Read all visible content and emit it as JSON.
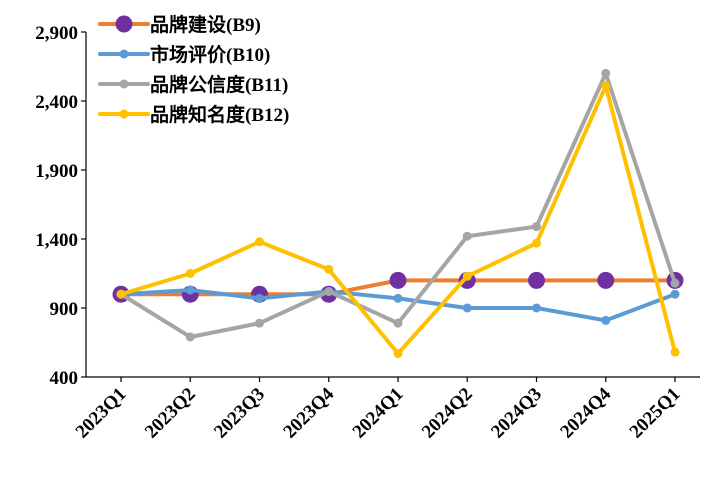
{
  "chart_data": {
    "type": "line",
    "categories": [
      "2023Q1",
      "2023Q2",
      "2023Q3",
      "2023Q4",
      "2024Q1",
      "2024Q2",
      "2024Q3",
      "2024Q4",
      "2025Q1"
    ],
    "ylim": [
      400,
      2900
    ],
    "yticks": [
      400,
      900,
      1400,
      1900,
      2400,
      2900
    ],
    "ytick_labels": [
      "400",
      "900",
      "1,400",
      "1,900",
      "2,400",
      "2,900"
    ],
    "grid": false,
    "legend_position": "top-left",
    "series": [
      {
        "name": "品牌建设(B9)",
        "color": "#ED7D31",
        "marker": "large-circle",
        "marker_color": "#7030A0",
        "values": [
          1000,
          1000,
          1000,
          1000,
          1100,
          1100,
          1100,
          1100,
          1100
        ]
      },
      {
        "name": "市场评价(B10)",
        "color": "#5B9BD5",
        "marker": "circle",
        "marker_color": "#5B9BD5",
        "values": [
          1000,
          1030,
          970,
          1020,
          970,
          900,
          900,
          810,
          1000
        ]
      },
      {
        "name": "品牌公信度(B11)",
        "color": "#A5A5A5",
        "marker": "circle",
        "marker_color": "#A5A5A5",
        "values": [
          1000,
          690,
          790,
          1020,
          790,
          1420,
          1490,
          2600,
          1080
        ]
      },
      {
        "name": "品牌知名度(B12)",
        "color": "#FFC000",
        "marker": "circle",
        "marker_color": "#FFC000",
        "values": [
          1000,
          1150,
          1380,
          1180,
          570,
          1130,
          1370,
          2510,
          580
        ]
      }
    ]
  }
}
